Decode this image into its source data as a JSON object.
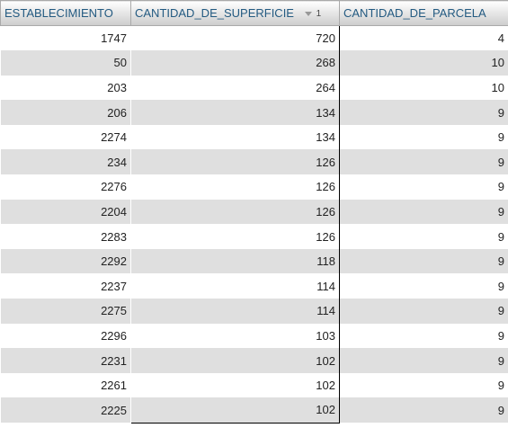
{
  "columns": [
    {
      "label": "ESTABLECIMIENTO"
    },
    {
      "label": "CANTIDAD_DE_SUPERFICIE",
      "sort_order": "1",
      "sort_direction": "descending",
      "sort_icon": "sort-desc-icon"
    },
    {
      "label": "CANTIDAD_DE_PARCELA"
    }
  ],
  "rows": [
    [
      "1747",
      "720",
      "4"
    ],
    [
      "50",
      "268",
      "10"
    ],
    [
      "203",
      "264",
      "10"
    ],
    [
      "206",
      "134",
      "9"
    ],
    [
      "2274",
      "134",
      "9"
    ],
    [
      "234",
      "126",
      "9"
    ],
    [
      "2276",
      "126",
      "9"
    ],
    [
      "2204",
      "126",
      "9"
    ],
    [
      "2283",
      "126",
      "9"
    ],
    [
      "2292",
      "118",
      "9"
    ],
    [
      "2237",
      "114",
      "9"
    ],
    [
      "2275",
      "114",
      "9"
    ],
    [
      "2296",
      "103",
      "9"
    ],
    [
      "2231",
      "102",
      "9"
    ],
    [
      "2261",
      "102",
      "9"
    ],
    [
      "2225",
      "102",
      "9"
    ]
  ],
  "colors": {
    "header_text": "#235a81",
    "row_even": "#dfdfdf",
    "row_odd": "#ffffff",
    "sorted_column_border": "#000000"
  }
}
